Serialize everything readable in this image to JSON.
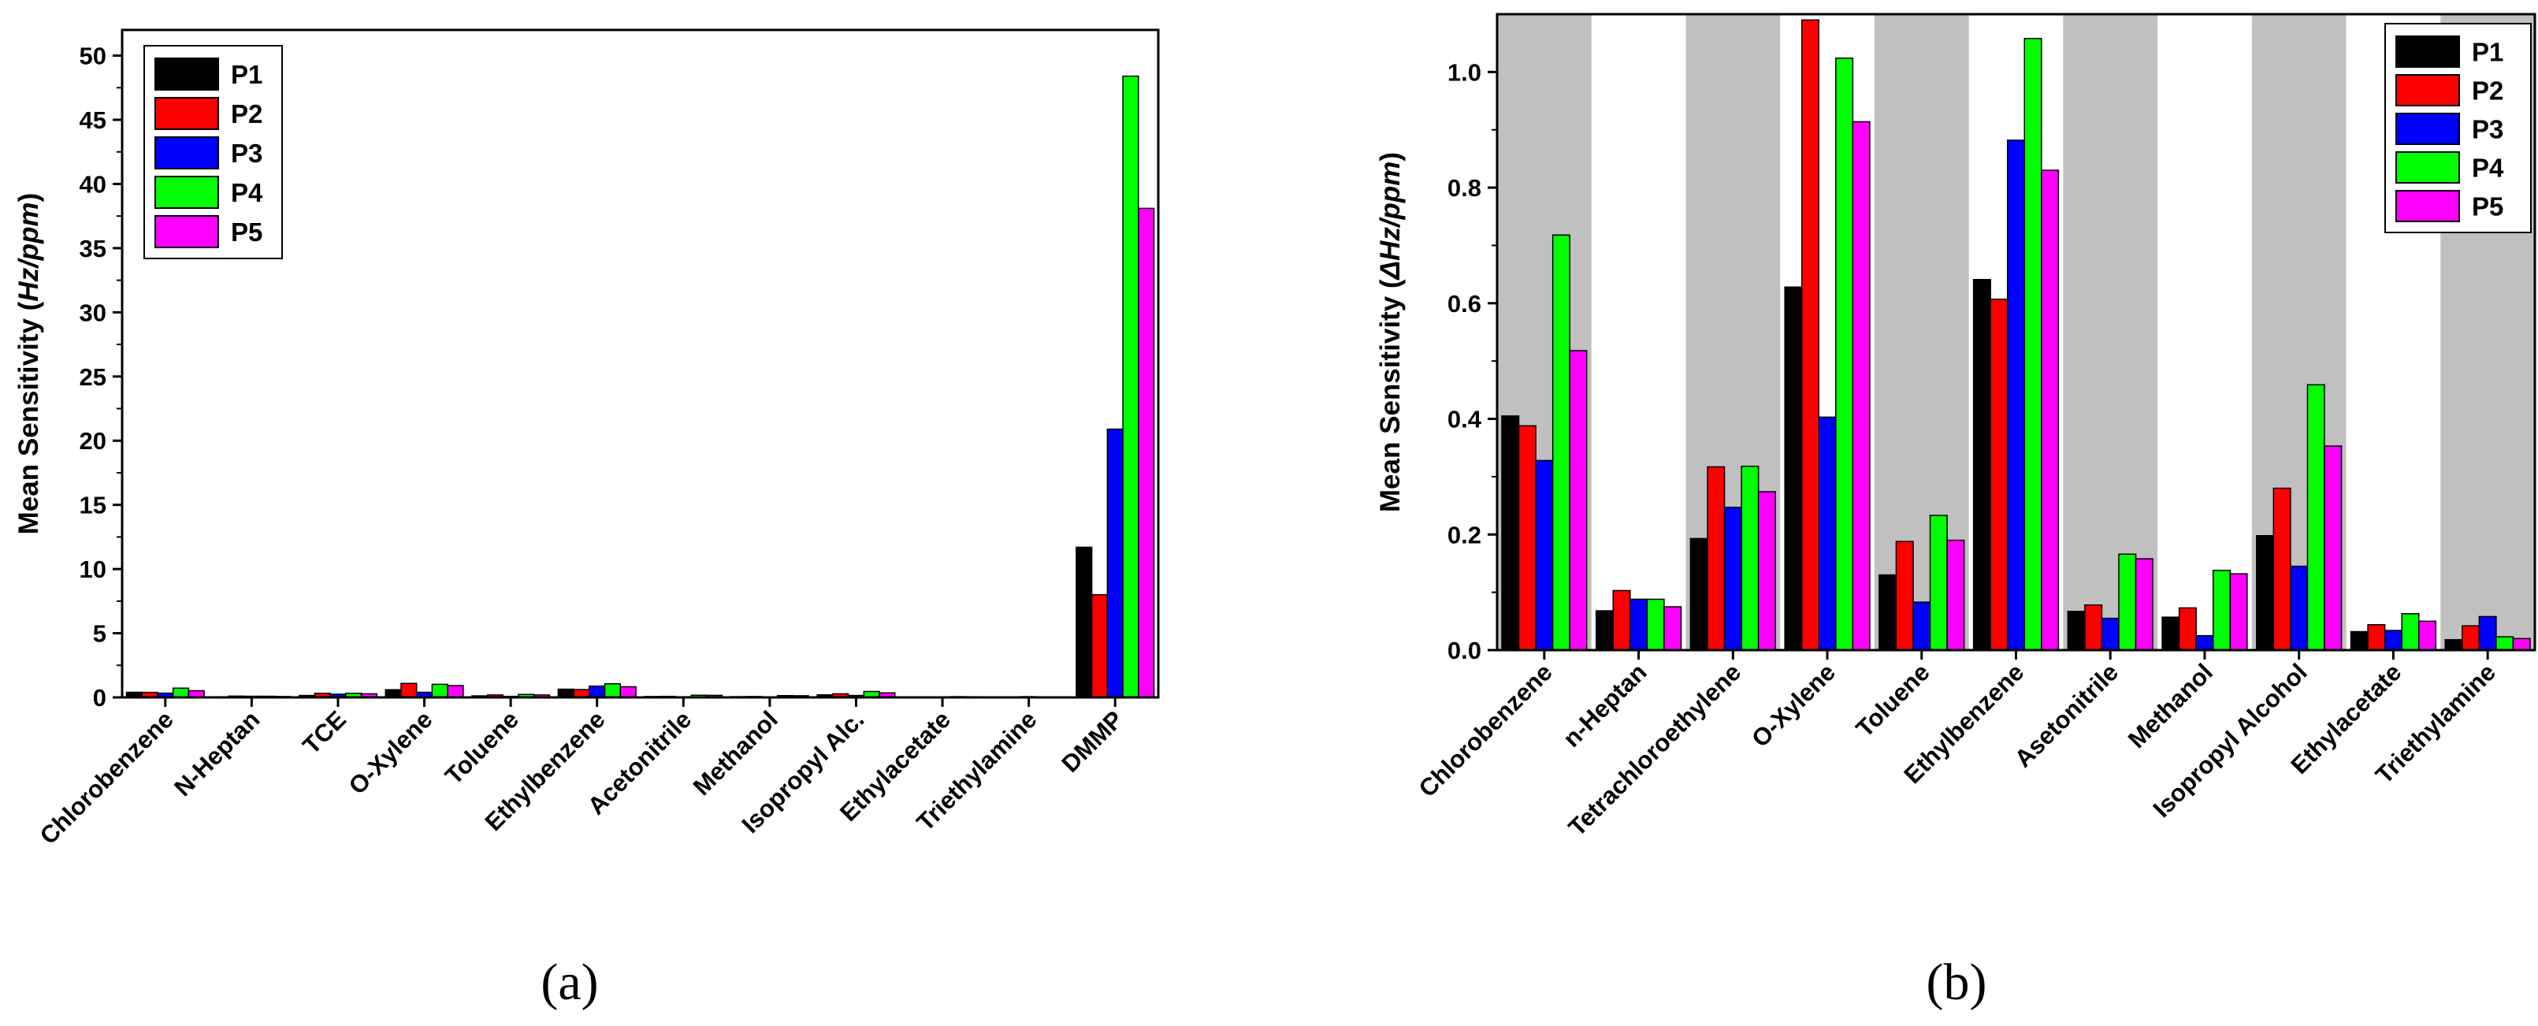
{
  "chart_data": [
    {
      "type": "bar",
      "panel_label": "(a)",
      "ylabel_prefix": "Mean Sensitivity (",
      "ylabel_unit": "Hz/ppm",
      "ylabel_suffix": ")",
      "ylim": [
        0,
        52
      ],
      "yticks": [
        0,
        5,
        10,
        15,
        20,
        25,
        30,
        35,
        40,
        45,
        50
      ],
      "shaded_bands": false,
      "legend_position": "top-left",
      "categories": [
        "Chlorobenzene",
        "N-Heptan",
        "TCE",
        "O-Xylene",
        "Toluene",
        "Ethylbenzene",
        "Acetonitrile",
        "Methanol",
        "Isopropyl Alc.",
        "Ethylacetate",
        "Triethylamine",
        "DMMP"
      ],
      "series": [
        {
          "name": "P1",
          "color": "#000000",
          "values": [
            0.4,
            0.05,
            0.15,
            0.6,
            0.12,
            0.64,
            0.07,
            0.06,
            0.2,
            0.03,
            0.02,
            11.7
          ]
        },
        {
          "name": "P2",
          "color": "#ff0000",
          "values": [
            0.39,
            0.1,
            0.32,
            1.09,
            0.19,
            0.61,
            0.08,
            0.07,
            0.28,
            0.04,
            0.04,
            8.0
          ]
        },
        {
          "name": "P3",
          "color": "#0000ff",
          "values": [
            0.33,
            0.09,
            0.25,
            0.4,
            0.08,
            0.88,
            0.05,
            0.03,
            0.15,
            0.03,
            0.06,
            20.9
          ]
        },
        {
          "name": "P4",
          "color": "#00ff00",
          "values": [
            0.72,
            0.09,
            0.32,
            1.02,
            0.23,
            1.06,
            0.17,
            0.14,
            0.46,
            0.06,
            0.02,
            48.4
          ]
        },
        {
          "name": "P5",
          "color": "#ff00ff",
          "values": [
            0.52,
            0.07,
            0.28,
            0.92,
            0.19,
            0.83,
            0.16,
            0.13,
            0.35,
            0.05,
            0.02,
            38.1
          ]
        }
      ]
    },
    {
      "type": "bar",
      "panel_label": "(b)",
      "ylabel_prefix": "Mean Sensitivity (",
      "ylabel_unit": "ΔHz/ppm",
      "ylabel_suffix": ")",
      "ylim": [
        0,
        1.1
      ],
      "yticks": [
        0.0,
        0.2,
        0.4,
        0.6,
        0.8,
        1.0
      ],
      "tick_decimals": 1,
      "shaded_bands": true,
      "band_color": "#c0c0c0",
      "legend_position": "top-right",
      "categories": [
        "Chlorobenzene",
        "n-Heptan",
        "Tetrachloroethylene",
        "O-Xylene",
        "Toluene",
        "Ethylbenzene",
        "Asetonitrile",
        "Methanol",
        "Isopropyl Alcohol",
        "Ethylacetate",
        "Triethylamine"
      ],
      "series": [
        {
          "name": "P1",
          "color": "#000000",
          "values": [
            0.405,
            0.068,
            0.193,
            0.628,
            0.13,
            0.641,
            0.067,
            0.057,
            0.198,
            0.032,
            0.018
          ]
        },
        {
          "name": "P2",
          "color": "#ff0000",
          "values": [
            0.388,
            0.103,
            0.317,
            1.09,
            0.188,
            0.607,
            0.078,
            0.073,
            0.28,
            0.044,
            0.042
          ]
        },
        {
          "name": "P3",
          "color": "#0000ff",
          "values": [
            0.328,
            0.088,
            0.247,
            0.403,
            0.083,
            0.882,
            0.055,
            0.025,
            0.145,
            0.034,
            0.058
          ]
        },
        {
          "name": "P4",
          "color": "#00ff00",
          "values": [
            0.718,
            0.088,
            0.318,
            1.024,
            0.233,
            1.058,
            0.166,
            0.138,
            0.459,
            0.063,
            0.023
          ]
        },
        {
          "name": "P5",
          "color": "#ff00ff",
          "values": [
            0.518,
            0.075,
            0.274,
            0.914,
            0.19,
            0.83,
            0.158,
            0.132,
            0.353,
            0.05,
            0.02
          ]
        }
      ]
    }
  ]
}
